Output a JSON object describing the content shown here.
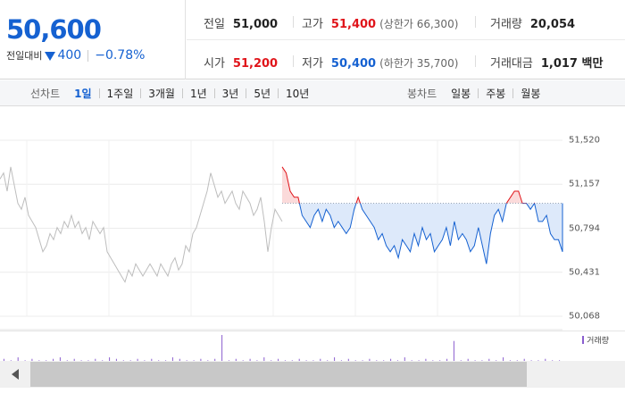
{
  "quote": {
    "current_price": "50,600",
    "change_label": "전일대비",
    "change_amount": "400",
    "change_rate": "−0.78%",
    "direction": "down",
    "stats": {
      "prev_close_label": "전일",
      "prev_close": "51,000",
      "high_label": "고가",
      "high": "51,400",
      "upper_limit": "(상한가 66,300)",
      "volume_label": "거래량",
      "volume": "20,054",
      "open_label": "시가",
      "open": "51,200",
      "low_label": "저가",
      "low": "50,400",
      "lower_limit": "(하한가 35,700)",
      "amount_label": "거래대금",
      "amount": "1,017 백만"
    },
    "colors": {
      "up": "#e0141a",
      "down": "#1561d1"
    }
  },
  "tabs": {
    "line_label": "선차트",
    "line_items": [
      "1일",
      "1주일",
      "3개월",
      "1년",
      "3년",
      "5년",
      "10년"
    ],
    "active": "1일",
    "candle_label": "봉차트",
    "candle_items": [
      "일봉",
      "주봉",
      "월봉"
    ]
  },
  "chart_data": {
    "type": "line",
    "yticks": [
      "51,520",
      "51,157",
      "50,794",
      "50,431",
      "50,068"
    ],
    "ylim": [
      50068,
      51520
    ],
    "baseline": 51000,
    "grid": true,
    "series": [
      {
        "values": [
          51200,
          51250,
          51100,
          51300,
          51150,
          51000,
          50950,
          51050,
          50900,
          50850,
          50800,
          50700,
          50600,
          50650,
          50750,
          50700,
          50800,
          50750,
          50850,
          50800,
          50900,
          50800,
          50850,
          50750,
          50800,
          50700,
          50850,
          50800,
          50750,
          50800,
          50600,
          50550,
          50500,
          50450,
          50400,
          50350,
          50450,
          50400,
          50500,
          50450,
          50400,
          50450,
          50500,
          50450,
          50400,
          50500,
          50450,
          50400,
          50500,
          50550,
          50450,
          50500,
          50650,
          50600,
          50750,
          50800,
          50900,
          51000,
          51100,
          51250,
          51150,
          51050,
          51100,
          51000,
          51050,
          51100,
          51000,
          50950,
          51100,
          51050,
          51000,
          50900,
          50950,
          51050,
          50850,
          50600,
          50800,
          50950,
          50900,
          50850
        ]
      },
      {
        "values": [
          51300,
          51250,
          51100,
          51050,
          51050,
          50900,
          50850,
          50800,
          50900,
          50950,
          50850,
          50950,
          50900,
          50800,
          50850,
          50800,
          50750,
          50800,
          50950,
          51050,
          50950,
          50900,
          50850,
          50800,
          50700,
          50750,
          50650,
          50600,
          50650,
          50550,
          50700,
          50650,
          50600,
          50750,
          50650,
          50800,
          50700,
          50750,
          50600,
          50650,
          50700,
          50800,
          50650,
          50850,
          50700,
          50750,
          50700,
          50600,
          50650,
          50800,
          50650,
          50500,
          50750,
          50900,
          50950,
          50850,
          51000,
          51050,
          51100,
          51100,
          51000,
          51000,
          50950,
          51000,
          50850,
          50850,
          50900,
          50750,
          50700,
          50700,
          50600
        ]
      }
    ],
    "volume_label": "거래량",
    "volume": [
      2,
      1,
      3,
      1,
      2,
      1,
      1,
      2,
      3,
      1,
      2,
      1,
      1,
      2,
      1,
      3,
      2,
      1,
      1,
      2,
      1,
      2,
      1,
      1,
      3,
      2,
      1,
      1,
      2,
      1,
      2,
      18,
      1,
      2,
      1,
      2,
      1,
      3,
      1,
      2,
      1,
      1,
      2,
      1,
      1,
      2,
      1,
      3,
      1,
      2,
      1,
      1,
      2,
      1,
      1,
      2,
      1,
      3,
      1,
      1,
      2,
      1,
      1,
      2,
      14,
      1,
      2,
      1,
      1,
      2,
      1,
      3,
      1,
      1,
      2,
      1,
      1,
      2,
      1,
      1
    ]
  }
}
